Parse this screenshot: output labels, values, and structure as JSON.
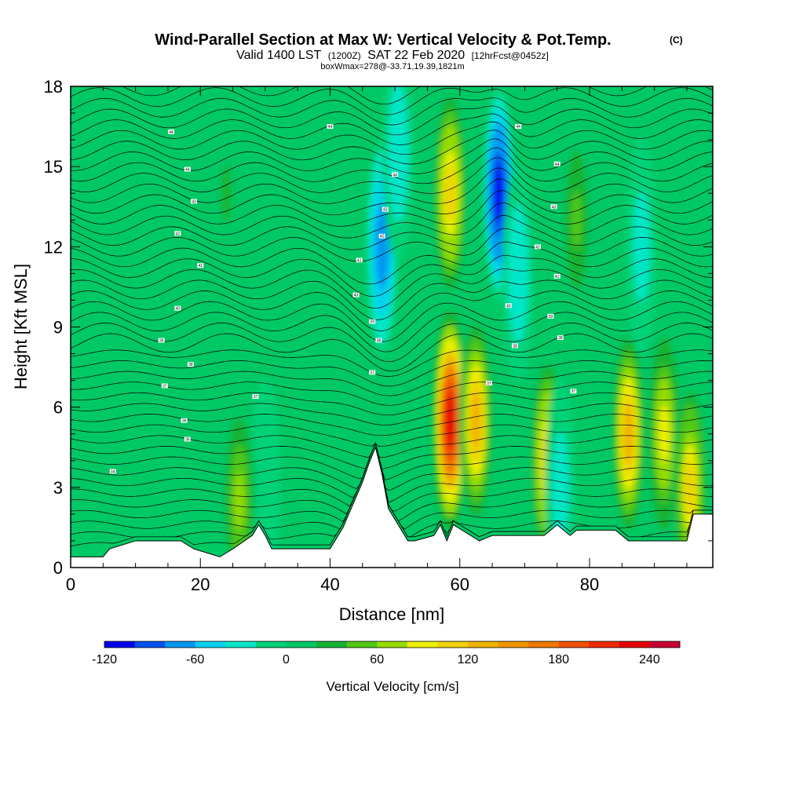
{
  "header": {
    "title_main": "Wind-Parallel Section at Max W: Vertical Velocity & Pot.Temp.",
    "title_copyright": "(C)",
    "valid_prefix": "Valid 1400 LST",
    "valid_utc": "(1200Z)",
    "valid_date": "SAT 22 Feb 2020",
    "forecast": "[12hrFcst@0452z]",
    "box_info": "boxWmax=278@-33.71,19.39,1821m"
  },
  "chart_data": {
    "type": "heatmap",
    "xlabel": "Distance [nm]",
    "ylabel": "Height [Kft MSL]",
    "xlim": [
      0,
      99
    ],
    "ylim": [
      0,
      18
    ],
    "x_ticks": [
      0,
      20,
      40,
      60,
      80
    ],
    "y_ticks": [
      0,
      3,
      6,
      9,
      12,
      15,
      18
    ],
    "colorbar": {
      "label": "Vertical Velocity [cm/s]",
      "tick_labels": [
        "-120",
        "-60",
        "0",
        "60",
        "120",
        "180",
        "240"
      ],
      "tick_values": [
        -120,
        -60,
        0,
        60,
        120,
        180,
        240
      ],
      "levels": [
        -120,
        -100,
        -80,
        -60,
        -40,
        -20,
        0,
        20,
        40,
        60,
        80,
        100,
        120,
        140,
        160,
        180,
        200,
        220,
        240,
        260
      ],
      "colors": [
        "#0000f0",
        "#0050f0",
        "#0096f0",
        "#00d2f0",
        "#00e6c8",
        "#00d278",
        "#00c864",
        "#14b432",
        "#50c814",
        "#96dc00",
        "#f0f000",
        "#f0d200",
        "#f0b400",
        "#f09600",
        "#f07800",
        "#f05000",
        "#f02800",
        "#e60000",
        "#c80032"
      ]
    },
    "terrain_profile": {
      "x": [
        0,
        5,
        6,
        10,
        17,
        19,
        23,
        25,
        28,
        29,
        30,
        31,
        40,
        42,
        45,
        46,
        47,
        48,
        49,
        52,
        53,
        56,
        57,
        58,
        59,
        61,
        63,
        65,
        73,
        75,
        77,
        78,
        84,
        86,
        95,
        96,
        99
      ],
      "y": [
        0.4,
        0.4,
        0.7,
        1.0,
        1.0,
        0.7,
        0.4,
        0.7,
        1.2,
        1.6,
        1.2,
        0.7,
        0.7,
        1.5,
        3.2,
        3.9,
        4.5,
        3.5,
        2.2,
        1.0,
        1.0,
        1.2,
        1.6,
        1.0,
        1.6,
        1.3,
        1.0,
        1.2,
        1.2,
        1.6,
        1.2,
        1.4,
        1.4,
        1.0,
        1.0,
        2.0,
        2.0
      ]
    },
    "w_features": [
      {
        "x": 58.5,
        "z": 5.5,
        "w": 230
      },
      {
        "x": 62.5,
        "z": 5.5,
        "w": 130
      },
      {
        "x": 86.0,
        "z": 5.0,
        "w": 130
      },
      {
        "x": 73.5,
        "z": 4.0,
        "w": 110
      },
      {
        "x": 91.5,
        "z": 5.0,
        "w": 90
      },
      {
        "x": 95.5,
        "z": 3.0,
        "w": 100
      },
      {
        "x": 58.5,
        "z": 14.0,
        "w": 110
      },
      {
        "x": 66.0,
        "z": 14.0,
        "w": -110
      },
      {
        "x": 48.0,
        "z": 12.0,
        "w": -80
      },
      {
        "x": 50.5,
        "z": 15.5,
        "w": -40
      },
      {
        "x": 69.0,
        "z": 11.0,
        "w": -40
      },
      {
        "x": 75.5,
        "z": 3.0,
        "w": -30
      },
      {
        "x": 78.0,
        "z": 13.0,
        "w": 40
      },
      {
        "x": 88.0,
        "z": 12.0,
        "w": -30
      },
      {
        "x": 30.0,
        "z": 3.0,
        "w": -20
      },
      {
        "x": 26.0,
        "z": 2.5,
        "w": 60
      },
      {
        "x": 24.0,
        "z": 14.0,
        "w": 20
      }
    ],
    "theta_contour_labels": [
      {
        "x": 15.5,
        "z": 16.3,
        "text": "44"
      },
      {
        "x": 18.0,
        "z": 14.9,
        "text": "44"
      },
      {
        "x": 19.0,
        "z": 13.7,
        "text": "43"
      },
      {
        "x": 16.5,
        "z": 12.5,
        "text": "42"
      },
      {
        "x": 20.0,
        "z": 11.3,
        "text": "41"
      },
      {
        "x": 16.5,
        "z": 9.7,
        "text": "40"
      },
      {
        "x": 14.0,
        "z": 8.5,
        "text": "39"
      },
      {
        "x": 18.5,
        "z": 7.6,
        "text": "38"
      },
      {
        "x": 14.5,
        "z": 6.8,
        "text": "37"
      },
      {
        "x": 17.5,
        "z": 5.5,
        "text": "36"
      },
      {
        "x": 18.0,
        "z": 4.8,
        "text": "35"
      },
      {
        "x": 6.5,
        "z": 3.6,
        "text": "34"
      },
      {
        "x": 28.5,
        "z": 6.4,
        "text": "37"
      },
      {
        "x": 40.0,
        "z": 16.5,
        "text": "44"
      },
      {
        "x": 50.0,
        "z": 14.7,
        "text": "44"
      },
      {
        "x": 48.5,
        "z": 13.4,
        "text": "43"
      },
      {
        "x": 48.0,
        "z": 12.4,
        "text": "42"
      },
      {
        "x": 44.5,
        "z": 11.5,
        "text": "41"
      },
      {
        "x": 44.0,
        "z": 10.2,
        "text": "40"
      },
      {
        "x": 46.5,
        "z": 9.2,
        "text": "39"
      },
      {
        "x": 47.5,
        "z": 8.5,
        "text": "38"
      },
      {
        "x": 46.5,
        "z": 7.3,
        "text": "37"
      },
      {
        "x": 69.0,
        "z": 16.5,
        "text": "44"
      },
      {
        "x": 75.0,
        "z": 15.1,
        "text": "44"
      },
      {
        "x": 74.5,
        "z": 13.5,
        "text": "43"
      },
      {
        "x": 72.0,
        "z": 12.0,
        "text": "42"
      },
      {
        "x": 75.0,
        "z": 10.9,
        "text": "41"
      },
      {
        "x": 67.5,
        "z": 9.8,
        "text": "40"
      },
      {
        "x": 74.0,
        "z": 9.4,
        "text": "39"
      },
      {
        "x": 75.5,
        "z": 8.6,
        "text": "38"
      },
      {
        "x": 68.5,
        "z": 8.3,
        "text": "38"
      },
      {
        "x": 64.5,
        "z": 6.9,
        "text": "37"
      },
      {
        "x": 77.5,
        "z": 6.6,
        "text": "37"
      }
    ]
  }
}
